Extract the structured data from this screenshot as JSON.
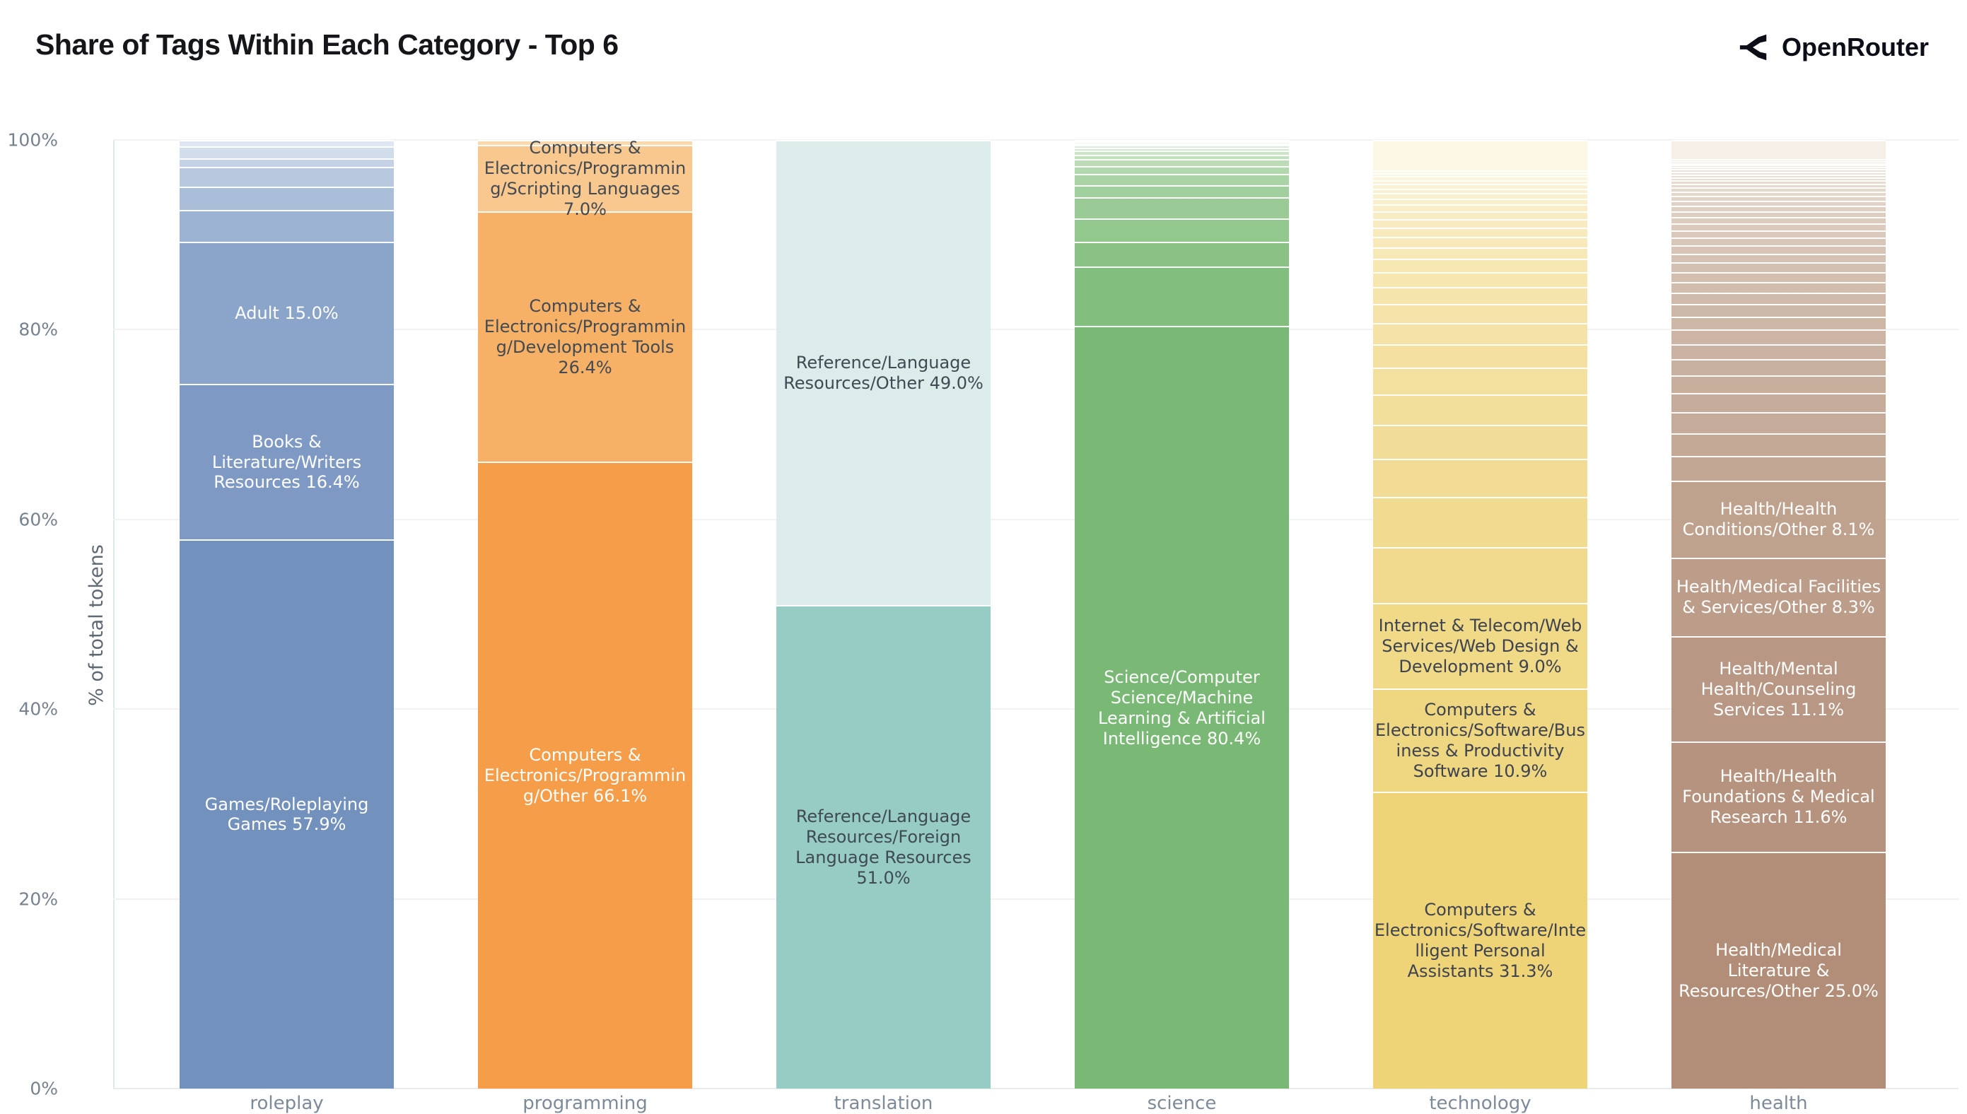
{
  "header": {
    "title": "Share of Tags Within Each Category - Top 6",
    "brand": "OpenRouter"
  },
  "chart_data": {
    "type": "bar",
    "subtype": "stacked-percentage-bar",
    "title": "Share of Tags Within Each Category - Top 6",
    "xlabel": "",
    "ylabel": "% of total tokens",
    "ylim": [
      0,
      100
    ],
    "yticks": [
      "0%",
      "20%",
      "40%",
      "60%",
      "80%",
      "100%"
    ],
    "ytick_values": [
      0,
      20,
      40,
      60,
      80,
      100
    ],
    "grid": "horizontal light gridlines, white background, legend none",
    "categories": [
      "roleplay",
      "programming",
      "translation",
      "science",
      "technology",
      "health"
    ],
    "note": "segments listed bottom-to-top; unlabeled segments are small remainder tags",
    "bars": [
      {
        "category": "roleplay",
        "shade_from": "#9db3d3",
        "shade_to": "#dfe7f2",
        "segments": [
          {
            "value": 57.9,
            "color": "#7291bd",
            "label": "Games/Roleplaying Games 57.9%",
            "text_color": "#ffffff"
          },
          {
            "value": 16.4,
            "color": "#7e9ac4",
            "label": "Books & Literature/Writers Resources 16.4%",
            "text_color": "#ffffff"
          },
          {
            "value": 15.0,
            "color": "#8aa4ca",
            "label": "Adult 15.0%",
            "text_color": "#ffffff"
          },
          {
            "value": 3.3
          },
          {
            "value": 2.5
          },
          {
            "value": 2.1
          },
          {
            "value": 0.9
          },
          {
            "value": 1.2
          },
          {
            "value": 0.7
          }
        ]
      },
      {
        "category": "programming",
        "shade_from": "#fbd9ae",
        "shade_to": "#fce3c2",
        "segments": [
          {
            "value": 66.1,
            "color": "#f59d49",
            "label": "Computers & Electronics/Programming/Other 66.1%",
            "text_color": "#ffffff"
          },
          {
            "value": 26.4,
            "color": "#f7b167",
            "label": "Computers & Electronics/Programming/Development Tools 26.4%",
            "text_color": "#434a52"
          },
          {
            "value": 7.0,
            "color": "#f9c88e",
            "label": "Computers & Electronics/Programming/Scripting Languages 7.0%",
            "text_color": "#434a52"
          },
          {
            "value": 0.5
          }
        ]
      },
      {
        "category": "translation",
        "shade_from": "#dcecea",
        "shade_to": "#dcecea",
        "segments": [
          {
            "value": 51.0,
            "color": "#97ccc4",
            "label": "Reference/Language Resources/Foreign Language Resources 51.0%",
            "text_color": "#3f4a52"
          },
          {
            "value": 49.0,
            "color": "#dcecea",
            "label": "Reference/Language Resources/Other 49.0%",
            "text_color": "#3f4a52"
          }
        ]
      },
      {
        "category": "science",
        "shade_from": "#82be7d",
        "shade_to": "#f3faf0",
        "segments": [
          {
            "value": 80.4,
            "color": "#79b975",
            "label": "Science/Computer Science/Machine Learning & Artificial Intelligence 80.4%",
            "text_color": "#ffffff"
          },
          {
            "value": 6.3
          },
          {
            "value": 2.6
          },
          {
            "value": 2.5
          },
          {
            "value": 2.2
          },
          {
            "value": 1.3
          },
          {
            "value": 1.2
          },
          {
            "value": 0.8
          },
          {
            "value": 0.7
          },
          {
            "value": 0.5
          },
          {
            "value": 0.4
          },
          {
            "value": 0.3
          },
          {
            "value": 0.3
          },
          {
            "value": 0.2
          },
          {
            "value": 0.2
          },
          {
            "value": 0.1
          }
        ]
      },
      {
        "category": "technology",
        "shade_from": "#f1da8e",
        "shade_to": "#fdf8e6",
        "segments": [
          {
            "value": 31.3,
            "color": "#eed377",
            "label": "Computers & Electronics/Software/Intelligent Personal Assistants 31.3%",
            "text_color": "#3e4350"
          },
          {
            "value": 10.9,
            "color": "#efd680",
            "label": "Computers & Electronics/Software/Business & Productivity Software 10.9%",
            "text_color": "#3e4350"
          },
          {
            "value": 9.0,
            "color": "#f0d987",
            "label": "Internet & Telecom/Web Services/Web Design & Development 9.0%",
            "text_color": "#3e4350"
          },
          {
            "value": 5.9
          },
          {
            "value": 5.3
          },
          {
            "value": 4.0
          },
          {
            "value": 3.6
          },
          {
            "value": 3.2
          },
          {
            "value": 2.8
          },
          {
            "value": 2.5
          },
          {
            "value": 2.2
          },
          {
            "value": 2.0
          },
          {
            "value": 1.8
          },
          {
            "value": 1.6
          },
          {
            "value": 1.4
          },
          {
            "value": 1.2
          },
          {
            "value": 1.1
          },
          {
            "value": 1.0
          },
          {
            "value": 0.9
          },
          {
            "value": 0.8
          },
          {
            "value": 0.7
          },
          {
            "value": 0.6
          },
          {
            "value": 0.6
          },
          {
            "value": 0.5
          },
          {
            "value": 0.5
          },
          {
            "value": 0.4
          },
          {
            "value": 0.4
          },
          {
            "value": 0.3
          },
          {
            "value": 0.3
          },
          {
            "value": 3.2
          }
        ]
      },
      {
        "category": "health",
        "shade_from": "#c2a794",
        "shade_to": "#f5efe8",
        "segments": [
          {
            "value": 25.0,
            "color": "#b28e79",
            "label": "Health/Medical Literature & Resources/Other 25.0%",
            "text_color": "#ffffff"
          },
          {
            "value": 11.6,
            "color": "#b5937e",
            "label": "Health/Health Foundations & Medical Research 11.6%",
            "text_color": "#ffffff"
          },
          {
            "value": 11.1,
            "color": "#b89884",
            "label": "Health/Mental Health/Counseling Services 11.1%",
            "text_color": "#ffffff"
          },
          {
            "value": 8.3,
            "color": "#bb9d89",
            "label": "Health/Medical Facilities & Services/Other 8.3%",
            "text_color": "#ffffff"
          },
          {
            "value": 8.1,
            "color": "#bfa28e",
            "label": "Health/Health Conditions/Other 8.1%",
            "text_color": "#ffffff"
          },
          {
            "value": 2.6
          },
          {
            "value": 2.4
          },
          {
            "value": 2.2
          },
          {
            "value": 2.0
          },
          {
            "value": 1.9
          },
          {
            "value": 1.7
          },
          {
            "value": 1.6
          },
          {
            "value": 1.5
          },
          {
            "value": 1.4
          },
          {
            "value": 1.3
          },
          {
            "value": 1.2
          },
          {
            "value": 1.1
          },
          {
            "value": 1.1
          },
          {
            "value": 1.0
          },
          {
            "value": 0.9
          },
          {
            "value": 0.9
          },
          {
            "value": 0.8
          },
          {
            "value": 0.8
          },
          {
            "value": 0.7
          },
          {
            "value": 0.7
          },
          {
            "value": 0.6
          },
          {
            "value": 0.6
          },
          {
            "value": 0.5
          },
          {
            "value": 0.5
          },
          {
            "value": 0.5
          },
          {
            "value": 0.4
          },
          {
            "value": 0.4
          },
          {
            "value": 0.4
          },
          {
            "value": 0.3
          },
          {
            "value": 0.3
          },
          {
            "value": 0.3
          },
          {
            "value": 0.3
          },
          {
            "value": 0.2
          },
          {
            "value": 0.2
          },
          {
            "value": 0.2
          },
          {
            "value": 0.2
          },
          {
            "value": 0.2
          },
          {
            "value": 2.0
          }
        ]
      }
    ],
    "colors": {
      "roleplay_base": "#7291bd",
      "programming_base": "#f59d49",
      "translation_base": "#97ccc4",
      "science_base": "#79b975",
      "technology_base": "#eed377",
      "health_base": "#b28e79",
      "axis_text": "#76828e",
      "category_text": "#7d8b99",
      "gridline": "#f0f2f3",
      "brand_color": "#0b0e17"
    }
  }
}
